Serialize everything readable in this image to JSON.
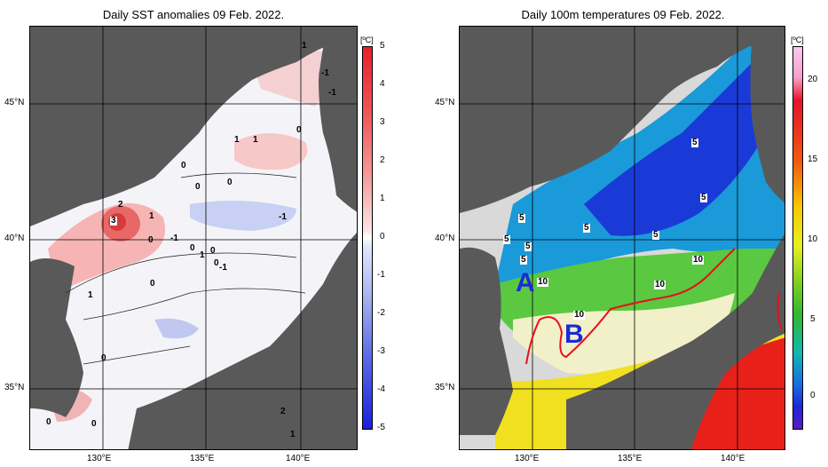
{
  "left_panel": {
    "title": "Daily SST anomalies 09 Feb. 2022.",
    "unit": "[ºC]",
    "colorbar_ticks": [
      "5",
      "4",
      "3",
      "2",
      "1",
      "0",
      "-1",
      "-2",
      "-3",
      "-4",
      "-5"
    ],
    "lat_labels": [
      "45°N",
      "40°N",
      "35°N"
    ],
    "lon_labels": [
      "130°E",
      "135°E",
      "140°E"
    ],
    "contour_labels": [
      "1",
      "-1",
      "-1",
      "0",
      "1",
      "1",
      "0",
      "0",
      "0",
      "2",
      "3",
      "1",
      "0",
      "-1",
      "-1",
      "0",
      "0",
      "1",
      "0",
      "-1",
      "1",
      "0",
      "0",
      "0",
      "2",
      "0",
      "1"
    ],
    "colors": {
      "land": "#595959",
      "sea_bg": "#f4f4f8",
      "positive": "#e8202a",
      "negative": "#1a1ee0"
    }
  },
  "right_panel": {
    "title": "Daily 100m temperatures 09 Feb. 2022.",
    "unit": "[ºC]",
    "colorbar_ticks": [
      "20",
      "15",
      "10",
      "5",
      "0"
    ],
    "lat_labels": [
      "45°N",
      "40°N",
      "35°N"
    ],
    "lon_labels": [
      "130°E",
      "135°E",
      "140°E"
    ],
    "contour_labels": [
      "5",
      "5",
      "5",
      "5",
      "5",
      "5",
      "5",
      "5",
      "10",
      "10",
      "10",
      "10"
    ],
    "region_labels": [
      "A",
      "B"
    ],
    "colors": {
      "land": "#595959",
      "shelf": "#d9d9d9",
      "front_line": "#e8101a",
      "region_label": "#1a2ad8"
    }
  }
}
